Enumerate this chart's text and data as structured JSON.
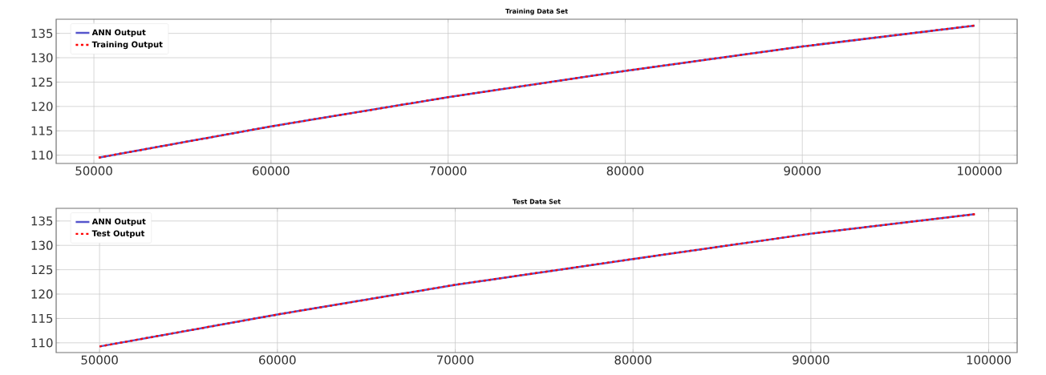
{
  "chart_data": [
    {
      "type": "line",
      "title": "Training Data Set",
      "x": [
        50270,
        60000,
        70000,
        80000,
        90000,
        99730
      ],
      "series": [
        {
          "name": "ANN Output",
          "color": "#5555cc",
          "line_style": "solid",
          "values": [
            109.5,
            115.9,
            121.9,
            127.3,
            132.3,
            136.6
          ]
        },
        {
          "name": "Training Output",
          "color": "#ff0000",
          "line_style": "dotted",
          "values": [
            109.5,
            115.9,
            121.9,
            127.3,
            132.3,
            136.6
          ]
        }
      ],
      "xlim": [
        47870,
        102130
      ],
      "ylim": [
        108.3,
        137.9
      ],
      "xticks": [
        50000,
        60000,
        70000,
        80000,
        90000,
        100000
      ],
      "yticks": [
        110,
        115,
        120,
        125,
        130,
        135
      ],
      "grid": true,
      "legend": "top left"
    },
    {
      "type": "line",
      "title": "Test Data Set",
      "x": [
        50000,
        60000,
        70000,
        80000,
        90000,
        99220
      ],
      "series": [
        {
          "name": "ANN Output",
          "color": "#5555cc",
          "line_style": "solid",
          "values": [
            109.25,
            115.8,
            121.9,
            127.2,
            132.4,
            136.4
          ]
        },
        {
          "name": "Test Output",
          "color": "#ff0000",
          "line_style": "dotted",
          "values": [
            109.25,
            115.8,
            121.9,
            127.2,
            132.4,
            136.4
          ]
        }
      ],
      "xlim": [
        47560,
        101600
      ],
      "ylim": [
        108.0,
        137.6
      ],
      "xticks": [
        50000,
        60000,
        70000,
        80000,
        90000,
        100000
      ],
      "yticks": [
        110,
        115,
        120,
        125,
        130,
        135
      ],
      "grid": true,
      "legend": "top left"
    }
  ]
}
